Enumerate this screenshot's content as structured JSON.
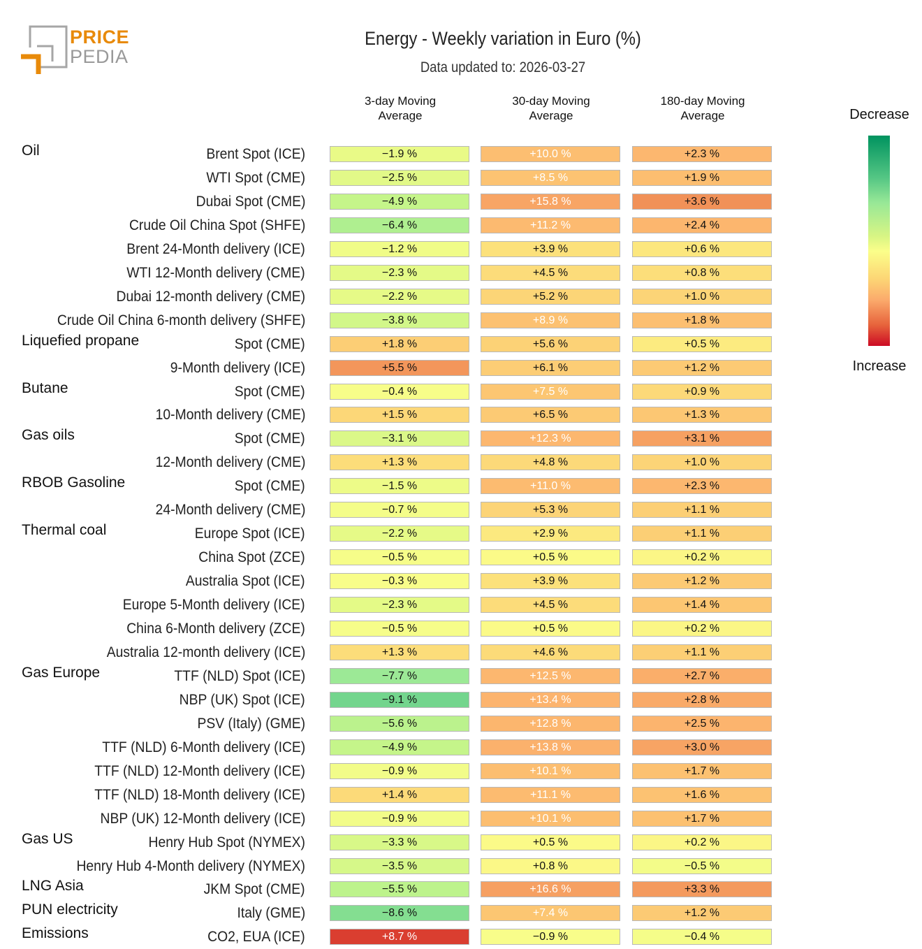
{
  "logo": {
    "line1": "PRICE",
    "line2": "PEDIA"
  },
  "header": {
    "title": "Energy - Weekly variation in Euro (%)",
    "subtitle": "Data updated to: 2026-03-27"
  },
  "columns": [
    {
      "line1": "3-day Moving",
      "line2": "Average"
    },
    {
      "line1": "30-day Moving",
      "line2": "Average"
    },
    {
      "line1": "180-day Moving",
      "line2": "Average"
    }
  ],
  "legend": {
    "top": "Decrease",
    "bottom": "Increase",
    "colors": {
      "strong_decrease": "#00935f",
      "neutral": "#fbfe8a",
      "strong_increase": "#cc0b24"
    }
  },
  "chart_data": {
    "type": "heatmap",
    "title": "Energy - Weekly variation in Euro (%)",
    "subtitle": "Data updated to: 2026-03-27",
    "columns": [
      "3-day Moving Average",
      "30-day Moving Average",
      "180-day Moving Average"
    ],
    "unit": "%",
    "color_scale": {
      "low_label": "Decrease",
      "high_label": "Increase",
      "low_color": "#00935f",
      "mid_color": "#fbfe8a",
      "high_color": "#cc0b24"
    },
    "rows": [
      {
        "group": "Oil",
        "label": "Brent Spot (ICE)",
        "values": [
          -1.9,
          10.0,
          2.3
        ]
      },
      {
        "group": "",
        "label": "WTI Spot (CME)",
        "values": [
          -2.5,
          8.5,
          1.9
        ]
      },
      {
        "group": "",
        "label": "Dubai Spot (CME)",
        "values": [
          -4.9,
          15.8,
          3.6
        ]
      },
      {
        "group": "",
        "label": "Crude Oil China Spot (SHFE)",
        "values": [
          -6.4,
          11.2,
          2.4
        ]
      },
      {
        "group": "",
        "label": "Brent 24-Month delivery (ICE)",
        "values": [
          -1.2,
          3.9,
          0.6
        ]
      },
      {
        "group": "",
        "label": "WTI 12-Month delivery (CME)",
        "values": [
          -2.3,
          4.5,
          0.8
        ]
      },
      {
        "group": "",
        "label": "Dubai 12-month delivery (CME)",
        "values": [
          -2.2,
          5.2,
          1.0
        ]
      },
      {
        "group": "",
        "label": "Crude Oil China 6-month delivery (SHFE)",
        "values": [
          -3.8,
          8.9,
          1.8
        ]
      },
      {
        "group": "Liquefied propane",
        "label": "Spot (CME)",
        "values": [
          1.8,
          5.6,
          0.5
        ]
      },
      {
        "group": "",
        "label": "9-Month delivery (ICE)",
        "values": [
          5.5,
          6.1,
          1.2
        ]
      },
      {
        "group": "Butane",
        "label": "Spot (CME)",
        "values": [
          -0.4,
          7.5,
          0.9
        ]
      },
      {
        "group": "",
        "label": "10-Month delivery (CME)",
        "values": [
          1.5,
          6.5,
          1.3
        ]
      },
      {
        "group": "Gas oils",
        "label": "Spot (CME)",
        "values": [
          -3.1,
          12.3,
          3.1
        ]
      },
      {
        "group": "",
        "label": "12-Month delivery (CME)",
        "values": [
          1.3,
          4.8,
          1.0
        ]
      },
      {
        "group": "RBOB Gasoline",
        "label": "Spot (CME)",
        "values": [
          -1.5,
          11.0,
          2.3
        ]
      },
      {
        "group": "",
        "label": "24-Month delivery (CME)",
        "values": [
          -0.7,
          5.3,
          1.1
        ]
      },
      {
        "group": "Thermal coal",
        "label": "Europe Spot (ICE)",
        "values": [
          -2.2,
          2.9,
          1.1
        ]
      },
      {
        "group": "",
        "label": "China Spot (ZCE)",
        "values": [
          -0.5,
          0.5,
          0.2
        ]
      },
      {
        "group": "",
        "label": "Australia Spot (ICE)",
        "values": [
          -0.3,
          3.9,
          1.2
        ]
      },
      {
        "group": "",
        "label": "Europe 5-Month delivery (ICE)",
        "values": [
          -2.3,
          4.5,
          1.4
        ]
      },
      {
        "group": "",
        "label": "China 6-Month delivery (ZCE)",
        "values": [
          -0.5,
          0.5,
          0.2
        ]
      },
      {
        "group": "",
        "label": "Australia 12-month delivery (ICE)",
        "values": [
          1.3,
          4.6,
          1.1
        ]
      },
      {
        "group": "Gas Europe",
        "label": "TTF (NLD) Spot (ICE)",
        "values": [
          -7.7,
          12.5,
          2.7
        ]
      },
      {
        "group": "",
        "label": "NBP (UK) Spot (ICE)",
        "values": [
          -9.1,
          13.4,
          2.8
        ]
      },
      {
        "group": "",
        "label": "PSV (Italy) (GME)",
        "values": [
          -5.6,
          12.8,
          2.5
        ]
      },
      {
        "group": "",
        "label": "TTF (NLD) 6-Month delivery (ICE)",
        "values": [
          -4.9,
          13.8,
          3.0
        ]
      },
      {
        "group": "",
        "label": "TTF (NLD) 12-Month delivery (ICE)",
        "values": [
          -0.9,
          10.1,
          1.7
        ]
      },
      {
        "group": "",
        "label": "TTF (NLD) 18-Month delivery (ICE)",
        "values": [
          1.4,
          11.1,
          1.6
        ]
      },
      {
        "group": "",
        "label": "NBP (UK) 12-Month delivery (ICE)",
        "values": [
          -0.9,
          10.1,
          1.7
        ]
      },
      {
        "group": "Gas US",
        "label": "Henry Hub Spot (NYMEX)",
        "values": [
          -3.3,
          0.5,
          0.2
        ]
      },
      {
        "group": "",
        "label": "Henry Hub 4-Month delivery (NYMEX)",
        "values": [
          -3.5,
          0.8,
          -0.5
        ]
      },
      {
        "group": "LNG Asia",
        "label": "JKM Spot (CME)",
        "values": [
          -5.5,
          16.6,
          3.3
        ]
      },
      {
        "group": "PUN electricity",
        "label": "Italy (GME)",
        "values": [
          -8.6,
          7.4,
          1.2
        ]
      },
      {
        "group": "Emissions",
        "label": "CO2, EUA (ICE)",
        "values": [
          8.7,
          -0.9,
          -0.4
        ]
      }
    ]
  }
}
